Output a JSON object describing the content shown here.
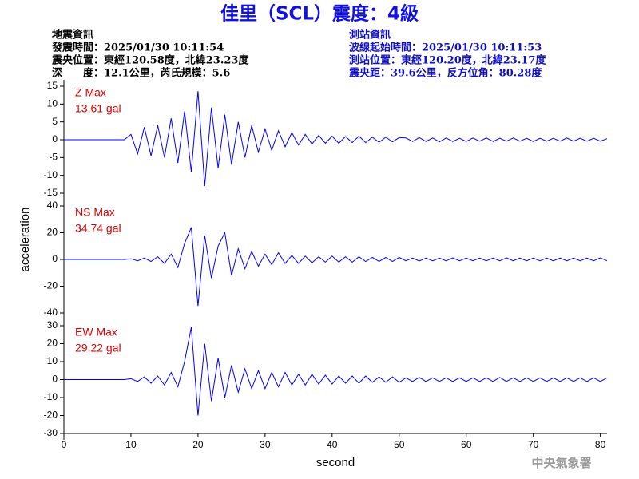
{
  "header": {
    "title": "佳里（SCL）震度：4級",
    "left_info": [
      "地震資訊",
      "發震時間：2025/01/30 10:11:54",
      "震央位置：東經120.58度，北緯23.23度",
      "深　　度：12.1公里，芮氏規模：5.6"
    ],
    "right_info": [
      "測站資訊",
      "波線起始時間：2025/01/30 10:11:53",
      "測站位置：東經120.20度，北緯23.17度",
      "震央距：39.6公里，反方位角：80.28度"
    ],
    "watermark": "中央氣象署"
  },
  "chart_data": [
    {
      "type": "line",
      "component": "Z Max",
      "max_label": "13.61 gal",
      "color": "#0000ff",
      "x": [
        0,
        9,
        10,
        11,
        12,
        13,
        14,
        15,
        16,
        17,
        18,
        19,
        20,
        21,
        22,
        23,
        24,
        25,
        26,
        27,
        28,
        29,
        30,
        31,
        32,
        33,
        34,
        35,
        36,
        37,
        38,
        39,
        40,
        41,
        42,
        43,
        44,
        45,
        46,
        47,
        48,
        49,
        50,
        51,
        52,
        53,
        54,
        55,
        56,
        57,
        58,
        59,
        60,
        61,
        62,
        63,
        64,
        65,
        66,
        67,
        68,
        69,
        70,
        71,
        72,
        73,
        74,
        75,
        76,
        77,
        78,
        79,
        80,
        81
      ],
      "values": [
        0,
        0,
        1.5,
        -4,
        3.5,
        -4.5,
        4,
        -5,
        6,
        -6.5,
        8,
        -9,
        13.61,
        -13,
        9,
        -8,
        7,
        -7,
        5,
        -5,
        4,
        -3.5,
        3,
        -3,
        2.5,
        -2,
        2,
        -1.5,
        1.5,
        -1.2,
        1.2,
        -1,
        1,
        -1,
        0.9,
        -0.8,
        1,
        -0.8,
        0.7,
        -0.7,
        0.7,
        -0.6,
        0.6,
        0.5,
        -0.5,
        0.6,
        -0.5,
        0.5,
        -0.6,
        0.5,
        -0.5,
        0.4,
        -0.5,
        0.5,
        -0.4,
        0.5,
        -0.5,
        0.4,
        -0.4,
        0.5,
        -0.4,
        0.4,
        -0.5,
        0.4,
        -0.4,
        0.4,
        -0.4,
        0.5,
        -0.4,
        0.4,
        -0.4,
        0.4,
        -0.4,
        0.3
      ],
      "xlim": [
        0,
        81
      ],
      "ylim": [
        -15,
        15
      ],
      "yticks": [
        -15,
        -10,
        -5,
        0,
        5,
        10,
        15
      ]
    },
    {
      "type": "line",
      "component": "NS Max",
      "max_label": "34.74 gal",
      "color": "#0000ff",
      "y_label": "acceleration",
      "x": [
        0,
        9,
        10,
        11,
        12,
        13,
        14,
        15,
        16,
        17,
        18,
        19,
        20,
        21,
        22,
        23,
        24,
        25,
        26,
        27,
        28,
        29,
        30,
        31,
        32,
        33,
        34,
        35,
        36,
        37,
        38,
        39,
        40,
        41,
        42,
        43,
        44,
        45,
        46,
        47,
        48,
        49,
        50,
        51,
        52,
        53,
        54,
        55,
        56,
        57,
        58,
        59,
        60,
        61,
        62,
        63,
        64,
        65,
        66,
        67,
        68,
        69,
        70,
        71,
        72,
        73,
        74,
        75,
        76,
        77,
        78,
        79,
        80,
        81
      ],
      "values": [
        0,
        0,
        0.5,
        -1,
        1,
        -1.5,
        2,
        -3,
        4,
        -6,
        12,
        24,
        -34.74,
        18,
        -14,
        10,
        20,
        -12,
        8,
        -7,
        6,
        -5,
        4,
        -4,
        5,
        -3,
        3,
        -3,
        2.5,
        -2.5,
        2,
        -2,
        2.5,
        -2,
        2,
        -2,
        2,
        -1.5,
        1.5,
        -1.5,
        1.5,
        -1.5,
        1.5,
        -1,
        1,
        -1.2,
        1,
        -1,
        1,
        -1,
        1.2,
        -1,
        1,
        -1,
        1,
        -1,
        1,
        -1,
        1.2,
        -1,
        1,
        -1,
        1,
        -1,
        1,
        -1,
        1,
        -1,
        1,
        -1,
        1,
        -1,
        1.2,
        -1
      ],
      "xlim": [
        0,
        81
      ],
      "ylim": [
        -40,
        40
      ],
      "yticks": [
        -40,
        -20,
        0,
        20,
        40
      ]
    },
    {
      "type": "line",
      "component": "EW Max",
      "max_label": "29.22 gal",
      "color": "#0000ff",
      "x_label": "second",
      "x": [
        0,
        9,
        10,
        11,
        12,
        13,
        14,
        15,
        16,
        17,
        18,
        19,
        20,
        21,
        22,
        23,
        24,
        25,
        26,
        27,
        28,
        29,
        30,
        31,
        32,
        33,
        34,
        35,
        36,
        37,
        38,
        39,
        40,
        41,
        42,
        43,
        44,
        45,
        46,
        47,
        48,
        49,
        50,
        51,
        52,
        53,
        54,
        55,
        56,
        57,
        58,
        59,
        60,
        61,
        62,
        63,
        64,
        65,
        66,
        67,
        68,
        69,
        70,
        71,
        72,
        73,
        74,
        75,
        76,
        77,
        78,
        79,
        80,
        81
      ],
      "values": [
        0,
        0,
        0.5,
        -1,
        1.5,
        -2,
        2,
        -3,
        4,
        -4,
        10,
        29.22,
        -20,
        20,
        -12,
        12,
        -10,
        8,
        -7,
        6,
        -5,
        5,
        -5,
        4,
        -4,
        4,
        -3,
        3,
        -3,
        3,
        -2.5,
        2.5,
        -2.5,
        2,
        -2,
        2,
        -2,
        2,
        -1.5,
        1.5,
        -1.5,
        1.5,
        -1.5,
        1,
        -1,
        1.2,
        -1,
        1,
        -1,
        1,
        -1,
        1,
        -1,
        1,
        -1,
        1,
        -1,
        1.2,
        -1,
        1,
        -1,
        1,
        -1,
        1,
        -1,
        1,
        -1,
        1,
        -1,
        1,
        -1,
        1,
        -1,
        1
      ],
      "xlim": [
        0,
        81
      ],
      "ylim": [
        -30,
        30
      ],
      "yticks": [
        -30,
        -20,
        -10,
        0,
        10,
        20,
        30
      ],
      "xticks": [
        0,
        10,
        20,
        30,
        40,
        50,
        60,
        70,
        80
      ]
    }
  ]
}
